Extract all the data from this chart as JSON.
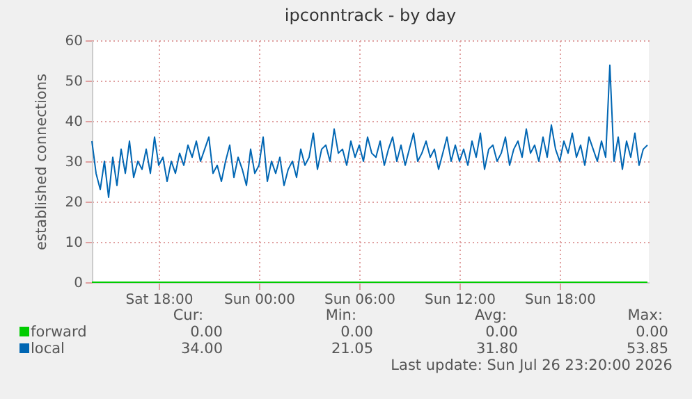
{
  "chart_data": {
    "type": "line",
    "title": "ipconntrack - by day",
    "ylabel": "established connections",
    "x": [
      "2026-07-25T14:00",
      "2026-07-25T14:15",
      "2026-07-25T14:30",
      "2026-07-25T14:45",
      "2026-07-25T15:00",
      "2026-07-25T15:15",
      "2026-07-25T15:30",
      "2026-07-25T15:45",
      "2026-07-25T16:00",
      "2026-07-25T16:15",
      "2026-07-25T16:30",
      "2026-07-25T16:45",
      "2026-07-25T17:00",
      "2026-07-25T17:15",
      "2026-07-25T17:30",
      "2026-07-25T17:45",
      "2026-07-25T18:00",
      "2026-07-25T18:15",
      "2026-07-25T18:30",
      "2026-07-25T18:45",
      "2026-07-25T19:00",
      "2026-07-25T19:15",
      "2026-07-25T19:30",
      "2026-07-25T19:45",
      "2026-07-25T20:00",
      "2026-07-25T20:15",
      "2026-07-25T20:30",
      "2026-07-25T20:45",
      "2026-07-25T21:00",
      "2026-07-25T21:15",
      "2026-07-25T21:30",
      "2026-07-25T21:45",
      "2026-07-25T22:00",
      "2026-07-25T22:15",
      "2026-07-25T22:30",
      "2026-07-25T22:45",
      "2026-07-25T23:00",
      "2026-07-25T23:15",
      "2026-07-25T23:30",
      "2026-07-25T23:45",
      "2026-07-26T00:00",
      "2026-07-26T00:15",
      "2026-07-26T00:30",
      "2026-07-26T00:45",
      "2026-07-26T01:00",
      "2026-07-26T01:15",
      "2026-07-26T01:30",
      "2026-07-26T01:45",
      "2026-07-26T02:00",
      "2026-07-26T02:15",
      "2026-07-26T02:30",
      "2026-07-26T02:45",
      "2026-07-26T03:00",
      "2026-07-26T03:15",
      "2026-07-26T03:30",
      "2026-07-26T03:45",
      "2026-07-26T04:00",
      "2026-07-26T04:15",
      "2026-07-26T04:30",
      "2026-07-26T04:45",
      "2026-07-26T05:00",
      "2026-07-26T05:15",
      "2026-07-26T05:30",
      "2026-07-26T05:45",
      "2026-07-26T06:00",
      "2026-07-26T06:15",
      "2026-07-26T06:30",
      "2026-07-26T06:45",
      "2026-07-26T07:00",
      "2026-07-26T07:15",
      "2026-07-26T07:30",
      "2026-07-26T07:45",
      "2026-07-26T08:00",
      "2026-07-26T08:15",
      "2026-07-26T08:30",
      "2026-07-26T08:45",
      "2026-07-26T09:00",
      "2026-07-26T09:15",
      "2026-07-26T09:30",
      "2026-07-26T09:45",
      "2026-07-26T10:00",
      "2026-07-26T10:15",
      "2026-07-26T10:30",
      "2026-07-26T10:45",
      "2026-07-26T11:00",
      "2026-07-26T11:15",
      "2026-07-26T11:30",
      "2026-07-26T11:45",
      "2026-07-26T12:00",
      "2026-07-26T12:15",
      "2026-07-26T12:30",
      "2026-07-26T12:45",
      "2026-07-26T13:00",
      "2026-07-26T13:15",
      "2026-07-26T13:30",
      "2026-07-26T13:45",
      "2026-07-26T14:00",
      "2026-07-26T14:15",
      "2026-07-26T14:30",
      "2026-07-26T14:45",
      "2026-07-26T15:00",
      "2026-07-26T15:15",
      "2026-07-26T15:30",
      "2026-07-26T15:45",
      "2026-07-26T16:00",
      "2026-07-26T16:15",
      "2026-07-26T16:30",
      "2026-07-26T16:45",
      "2026-07-26T17:00",
      "2026-07-26T17:15",
      "2026-07-26T17:30",
      "2026-07-26T17:45",
      "2026-07-26T18:00",
      "2026-07-26T18:15",
      "2026-07-26T18:30",
      "2026-07-26T18:45",
      "2026-07-26T19:00",
      "2026-07-26T19:15",
      "2026-07-26T19:30",
      "2026-07-26T19:45",
      "2026-07-26T20:00",
      "2026-07-26T20:15",
      "2026-07-26T20:30",
      "2026-07-26T20:45",
      "2026-07-26T21:00",
      "2026-07-26T21:15",
      "2026-07-26T21:30",
      "2026-07-26T21:45",
      "2026-07-26T22:00",
      "2026-07-26T22:15",
      "2026-07-26T22:30",
      "2026-07-26T22:45",
      "2026-07-26T23:00",
      "2026-07-26T23:15"
    ],
    "series": [
      {
        "name": "forward",
        "color": "#00cc00",
        "x": [
          "2026-07-25T14:00",
          "2026-07-26T23:15"
        ],
        "values": [
          0,
          0
        ]
      },
      {
        "name": "local",
        "color": "#0066b3",
        "values": [
          35,
          27,
          23,
          30,
          21.05,
          31,
          24,
          33,
          27,
          35,
          26,
          30,
          28,
          33,
          27,
          36,
          29,
          31,
          25,
          30,
          27,
          32,
          29,
          34,
          31,
          35,
          30,
          33,
          36,
          27,
          29,
          25,
          30,
          34,
          26,
          31,
          28,
          24,
          33,
          27,
          29,
          36,
          25,
          30,
          27,
          31,
          24,
          28,
          30,
          26,
          33,
          29,
          31,
          37,
          28,
          33,
          34,
          30,
          38,
          32,
          33,
          29,
          35,
          31,
          34,
          30,
          36,
          32,
          31,
          35,
          29,
          33,
          36,
          30,
          34,
          29,
          33,
          37,
          30,
          32,
          35,
          31,
          33,
          28,
          32,
          36,
          30,
          34,
          30,
          33,
          29,
          35,
          31,
          37,
          28,
          33,
          34,
          30,
          32,
          36,
          29,
          33,
          35,
          31,
          38,
          32,
          34,
          30,
          36,
          31,
          39,
          33,
          30,
          35,
          32,
          37,
          31,
          34,
          29,
          36,
          33,
          30,
          35,
          31,
          53.85,
          30,
          36,
          28,
          35,
          31,
          37,
          29,
          33,
          34
        ]
      }
    ],
    "xlim": [
      "2026-07-25T14:00",
      "2026-07-26T23:20"
    ],
    "xticks": [
      {
        "value": "2026-07-25T18:00",
        "label": "Sat 18:00"
      },
      {
        "value": "2026-07-26T00:00",
        "label": "Sun 00:00"
      },
      {
        "value": "2026-07-26T06:00",
        "label": "Sun 06:00"
      },
      {
        "value": "2026-07-26T12:00",
        "label": "Sun 12:00"
      },
      {
        "value": "2026-07-26T18:00",
        "label": "Sun 18:00"
      }
    ],
    "ylim": [
      0,
      60
    ],
    "yticks": [
      0,
      10,
      20,
      30,
      40,
      50,
      60
    ],
    "grid": true,
    "legend": "bottom",
    "annotations": [
      "Cur:",
      "Min:",
      "Avg:",
      "Max:",
      "0.00",
      "0.00",
      "0.00",
      "0.00",
      "34.00",
      "21.05",
      "31.80",
      "53.85",
      "Last update: Sun Jul 26 23:20:00 2026"
    ]
  }
}
